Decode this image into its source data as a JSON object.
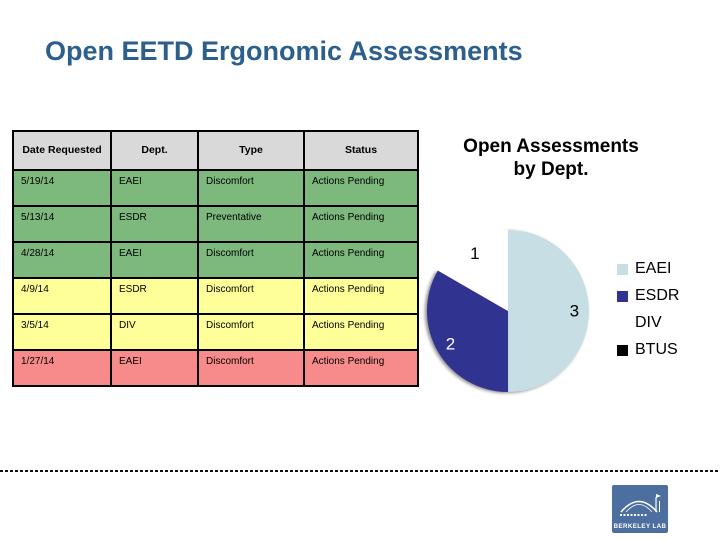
{
  "slide": {
    "title": "Open EETD Ergonomic Assessments",
    "title_color": "#2d5f8c",
    "background": "#ffffff"
  },
  "table": {
    "headers": [
      "Date Requested",
      "Dept.",
      "Type",
      "Status"
    ],
    "rows": [
      [
        "5/19/14",
        "EAEI",
        "Discomfort",
        "Actions Pending"
      ],
      [
        "5/13/14",
        "ESDR",
        "Preventative",
        "Actions Pending"
      ],
      [
        "4/28/14",
        "EAEI",
        "Discomfort",
        "Actions Pending"
      ],
      [
        "4/9/14",
        "ESDR",
        "Discomfort",
        "Actions Pending"
      ],
      [
        "3/5/14",
        "DIV",
        "Discomfort",
        "Actions Pending"
      ],
      [
        "1/27/14",
        "EAEI",
        "Discomfort",
        "Actions Pending"
      ]
    ],
    "row_colors": [
      "#7db87d",
      "#7db87d",
      "#7db87d",
      "#ffff99",
      "#ffff99",
      "#f78b8b"
    ],
    "header_bg": "#d9d9d9",
    "border_color": "#000000"
  },
  "chart_data": {
    "type": "pie",
    "title": "Open Assessments by Dept.",
    "title_lines": [
      "Open Assessments",
      "by Dept."
    ],
    "categories": [
      "EAEI",
      "ESDR",
      "DIV",
      "BTUS"
    ],
    "values": [
      3,
      2,
      1,
      0
    ],
    "colors": [
      "#c7dfe4",
      "#303390",
      "#ffffff",
      "#000000"
    ],
    "data_labels": [
      "3",
      "2",
      "1",
      ""
    ],
    "data_label_colors": [
      "#000000",
      "#ffffff",
      "#000000",
      "#000000"
    ],
    "start_angle": "top",
    "direction": "clockwise",
    "legend_position": "right"
  },
  "logo": {
    "label": "BERKELEY LAB",
    "bg_color": "#4d6fa0"
  }
}
